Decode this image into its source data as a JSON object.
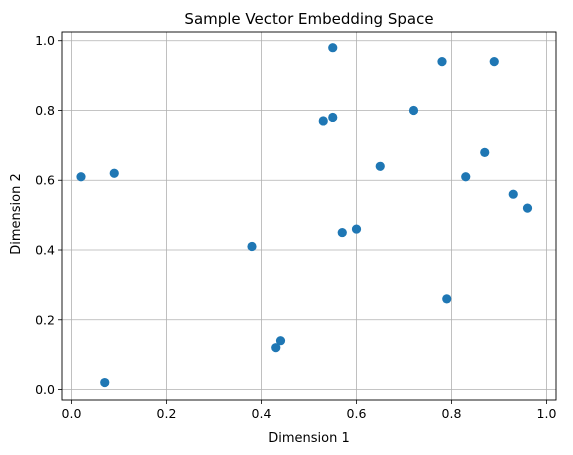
{
  "chart_data": {
    "type": "scatter",
    "title": "Sample Vector Embedding Space",
    "xlabel": "Dimension 1",
    "ylabel": "Dimension 2",
    "xlim": [
      -0.02,
      1.02
    ],
    "ylim": [
      -0.03,
      1.025
    ],
    "xticks": [
      0.0,
      0.2,
      0.4,
      0.6,
      0.8,
      1.0
    ],
    "xtick_labels": [
      "0.0",
      "0.2",
      "0.4",
      "0.6",
      "0.8",
      "1.0"
    ],
    "yticks": [
      0.0,
      0.2,
      0.4,
      0.6,
      0.8,
      1.0
    ],
    "ytick_labels": [
      "0.0",
      "0.2",
      "0.4",
      "0.6",
      "0.8",
      "1.0"
    ],
    "grid": true,
    "marker_color": "#1f77b4",
    "points": [
      {
        "x": 0.02,
        "y": 0.61
      },
      {
        "x": 0.09,
        "y": 0.62
      },
      {
        "x": 0.07,
        "y": 0.02
      },
      {
        "x": 0.38,
        "y": 0.41
      },
      {
        "x": 0.43,
        "y": 0.12
      },
      {
        "x": 0.44,
        "y": 0.14
      },
      {
        "x": 0.53,
        "y": 0.77
      },
      {
        "x": 0.55,
        "y": 0.78
      },
      {
        "x": 0.55,
        "y": 0.98
      },
      {
        "x": 0.57,
        "y": 0.45
      },
      {
        "x": 0.6,
        "y": 0.46
      },
      {
        "x": 0.65,
        "y": 0.64
      },
      {
        "x": 0.72,
        "y": 0.8
      },
      {
        "x": 0.78,
        "y": 0.94
      },
      {
        "x": 0.79,
        "y": 0.26
      },
      {
        "x": 0.83,
        "y": 0.61
      },
      {
        "x": 0.87,
        "y": 0.68
      },
      {
        "x": 0.89,
        "y": 0.94
      },
      {
        "x": 0.93,
        "y": 0.56
      },
      {
        "x": 0.96,
        "y": 0.52
      }
    ]
  }
}
